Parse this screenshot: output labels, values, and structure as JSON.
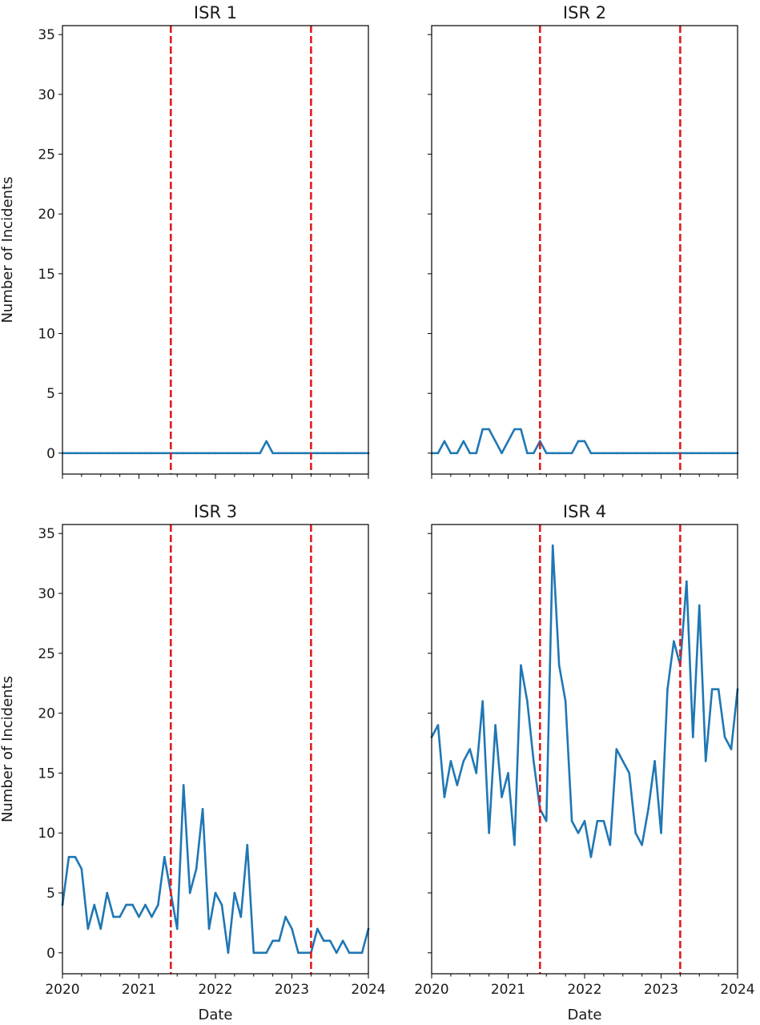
{
  "chart_data": [
    {
      "type": "line",
      "title": "ISR 1",
      "xlabel": "",
      "ylabel": "Number of Incidents",
      "xlim": [
        "2020-01",
        "2024-01"
      ],
      "ylim": [
        -1.75,
        35.75
      ],
      "xticks": [
        "2020",
        "2021",
        "2022",
        "2023",
        "2024"
      ],
      "yticks": [
        0,
        5,
        10,
        15,
        20,
        25,
        30,
        35
      ],
      "show_x_tick_labels": false,
      "show_y_tick_labels": true,
      "vlines": [
        "2021-06",
        "2023-04"
      ],
      "grid": false,
      "series": [
        {
          "x": [
            "2020-01",
            "2020-02",
            "2020-03",
            "2020-04",
            "2020-05",
            "2020-06",
            "2020-07",
            "2020-08",
            "2020-09",
            "2020-10",
            "2020-11",
            "2020-12",
            "2021-01",
            "2021-02",
            "2021-03",
            "2021-04",
            "2021-05",
            "2021-06",
            "2021-07",
            "2021-08",
            "2021-09",
            "2021-10",
            "2021-11",
            "2021-12",
            "2022-01",
            "2022-02",
            "2022-03",
            "2022-04",
            "2022-05",
            "2022-06",
            "2022-07",
            "2022-08",
            "2022-09",
            "2022-10",
            "2022-11",
            "2022-12",
            "2023-01",
            "2023-02",
            "2023-03",
            "2023-04",
            "2023-05",
            "2023-06",
            "2023-07",
            "2023-08",
            "2023-09",
            "2023-10",
            "2023-11",
            "2023-12",
            "2024-01"
          ],
          "values": [
            0,
            0,
            0,
            0,
            0,
            0,
            0,
            0,
            0,
            0,
            0,
            0,
            0,
            0,
            0,
            0,
            0,
            0,
            0,
            0,
            0,
            0,
            0,
            0,
            0,
            0,
            0,
            0,
            0,
            0,
            0,
            0,
            1,
            0,
            0,
            0,
            0,
            0,
            0,
            0,
            0,
            0,
            0,
            0,
            0,
            0,
            0,
            0,
            0
          ]
        }
      ]
    },
    {
      "type": "line",
      "title": "ISR 2",
      "xlabel": "",
      "ylabel": "",
      "xlim": [
        "2020-01",
        "2024-01"
      ],
      "ylim": [
        -1.75,
        35.75
      ],
      "xticks": [
        "2020",
        "2021",
        "2022",
        "2023",
        "2024"
      ],
      "yticks": [
        0,
        5,
        10,
        15,
        20,
        25,
        30,
        35
      ],
      "show_x_tick_labels": false,
      "show_y_tick_labels": false,
      "vlines": [
        "2021-06",
        "2023-04"
      ],
      "grid": false,
      "series": [
        {
          "x": [
            "2020-01",
            "2020-02",
            "2020-03",
            "2020-04",
            "2020-05",
            "2020-06",
            "2020-07",
            "2020-08",
            "2020-09",
            "2020-10",
            "2020-11",
            "2020-12",
            "2021-01",
            "2021-02",
            "2021-03",
            "2021-04",
            "2021-05",
            "2021-06",
            "2021-07",
            "2021-08",
            "2021-09",
            "2021-10",
            "2021-11",
            "2021-12",
            "2022-01",
            "2022-02",
            "2022-03",
            "2022-04",
            "2022-05",
            "2022-06",
            "2022-07",
            "2022-08",
            "2022-09",
            "2022-10",
            "2022-11",
            "2022-12",
            "2023-01",
            "2023-02",
            "2023-03",
            "2023-04",
            "2023-05",
            "2023-06",
            "2023-07",
            "2023-08",
            "2023-09",
            "2023-10",
            "2023-11",
            "2023-12",
            "2024-01"
          ],
          "values": [
            0,
            0,
            1,
            0,
            0,
            1,
            0,
            0,
            2,
            2,
            1,
            0,
            1,
            2,
            2,
            0,
            0,
            1,
            0,
            0,
            0,
            0,
            0,
            1,
            1,
            0,
            0,
            0,
            0,
            0,
            0,
            0,
            0,
            0,
            0,
            0,
            0,
            0,
            0,
            0,
            0,
            0,
            0,
            0,
            0,
            0,
            0,
            0,
            0
          ]
        }
      ]
    },
    {
      "type": "line",
      "title": "ISR 3",
      "xlabel": "Date",
      "ylabel": "Number of Incidents",
      "xlim": [
        "2020-01",
        "2024-01"
      ],
      "ylim": [
        -1.75,
        35.75
      ],
      "xticks": [
        "2020",
        "2021",
        "2022",
        "2023",
        "2024"
      ],
      "yticks": [
        0,
        5,
        10,
        15,
        20,
        25,
        30,
        35
      ],
      "show_x_tick_labels": true,
      "show_y_tick_labels": true,
      "vlines": [
        "2021-06",
        "2023-04"
      ],
      "grid": false,
      "series": [
        {
          "x": [
            "2020-01",
            "2020-02",
            "2020-03",
            "2020-04",
            "2020-05",
            "2020-06",
            "2020-07",
            "2020-08",
            "2020-09",
            "2020-10",
            "2020-11",
            "2020-12",
            "2021-01",
            "2021-02",
            "2021-03",
            "2021-04",
            "2021-05",
            "2021-06",
            "2021-07",
            "2021-08",
            "2021-09",
            "2021-10",
            "2021-11",
            "2021-12",
            "2022-01",
            "2022-02",
            "2022-03",
            "2022-04",
            "2022-05",
            "2022-06",
            "2022-07",
            "2022-08",
            "2022-09",
            "2022-10",
            "2022-11",
            "2022-12",
            "2023-01",
            "2023-02",
            "2023-03",
            "2023-04",
            "2023-05",
            "2023-06",
            "2023-07",
            "2023-08",
            "2023-09",
            "2023-10",
            "2023-11",
            "2023-12",
            "2024-01"
          ],
          "values": [
            4,
            8,
            8,
            7,
            2,
            4,
            2,
            5,
            3,
            3,
            4,
            4,
            3,
            4,
            3,
            4,
            8,
            5,
            2,
            14,
            5,
            7,
            12,
            2,
            5,
            4,
            0,
            5,
            3,
            9,
            0,
            0,
            0,
            1,
            1,
            3,
            2,
            0,
            0,
            0,
            2,
            1,
            1,
            0,
            1,
            0,
            0,
            0,
            2
          ]
        }
      ]
    },
    {
      "type": "line",
      "title": "ISR 4",
      "xlabel": "Date",
      "ylabel": "",
      "xlim": [
        "2020-01",
        "2024-01"
      ],
      "ylim": [
        -1.75,
        35.75
      ],
      "xticks": [
        "2020",
        "2021",
        "2022",
        "2023",
        "2024"
      ],
      "yticks": [
        0,
        5,
        10,
        15,
        20,
        25,
        30,
        35
      ],
      "show_x_tick_labels": true,
      "show_y_tick_labels": false,
      "vlines": [
        "2021-06",
        "2023-04"
      ],
      "grid": false,
      "series": [
        {
          "x": [
            "2020-01",
            "2020-02",
            "2020-03",
            "2020-04",
            "2020-05",
            "2020-06",
            "2020-07",
            "2020-08",
            "2020-09",
            "2020-10",
            "2020-11",
            "2020-12",
            "2021-01",
            "2021-02",
            "2021-03",
            "2021-04",
            "2021-05",
            "2021-06",
            "2021-07",
            "2021-08",
            "2021-09",
            "2021-10",
            "2021-11",
            "2021-12",
            "2022-01",
            "2022-02",
            "2022-03",
            "2022-04",
            "2022-05",
            "2022-06",
            "2022-07",
            "2022-08",
            "2022-09",
            "2022-10",
            "2022-11",
            "2022-12",
            "2023-01",
            "2023-02",
            "2023-03",
            "2023-04",
            "2023-05",
            "2023-06",
            "2023-07",
            "2023-08",
            "2023-09",
            "2023-10",
            "2023-11",
            "2023-12",
            "2024-01"
          ],
          "values": [
            18,
            19,
            13,
            16,
            14,
            16,
            17,
            15,
            21,
            10,
            19,
            13,
            15,
            9,
            24,
            21,
            16,
            12,
            11,
            34,
            24,
            21,
            11,
            10,
            11,
            8,
            11,
            11,
            9,
            17,
            16,
            15,
            10,
            9,
            12,
            16,
            10,
            22,
            26,
            24,
            31,
            18,
            29,
            16,
            22,
            22,
            18,
            17,
            22
          ]
        }
      ]
    }
  ],
  "colors": {
    "series": "#1f77b4",
    "vline": "#e31a1c",
    "axes": "#000000",
    "text": "#1a1a1a",
    "background": "#ffffff"
  }
}
